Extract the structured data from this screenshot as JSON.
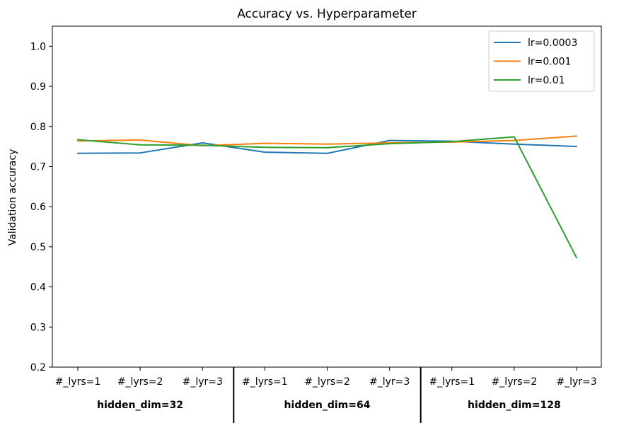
{
  "chart_data": {
    "type": "line",
    "title": "Accuracy vs. Hyperparameter",
    "xlabel": "",
    "ylabel": "Validation accuracy",
    "ylim": [
      0.2,
      1.05
    ],
    "yticks": [
      0.2,
      0.3,
      0.4,
      0.5,
      0.6,
      0.7,
      0.8,
      0.9,
      1.0
    ],
    "ytick_labels": [
      "0.2",
      "0.3",
      "0.4",
      "0.5",
      "0.6",
      "0.7",
      "0.8",
      "0.9",
      "1.0"
    ],
    "categories": [
      "#_lyrs=1",
      "#_lyrs=2",
      "#_lyr=3",
      "#_lyrs=1",
      "#_lyrs=2",
      "#_lyr=3",
      "#_lyrs=1",
      "#_lyrs=2",
      "#_lyr=3"
    ],
    "groups": [
      {
        "label": "hidden_dim=32",
        "span": [
          0,
          2
        ]
      },
      {
        "label": "hidden_dim=64",
        "span": [
          3,
          5
        ]
      },
      {
        "label": "hidden_dim=128",
        "span": [
          6,
          8
        ]
      }
    ],
    "series": [
      {
        "name": "lr=0.0003",
        "color": "#1f77b4",
        "values": [
          0.733,
          0.734,
          0.759,
          0.736,
          0.733,
          0.765,
          0.763,
          0.756,
          0.75
        ]
      },
      {
        "name": "lr=0.001",
        "color": "#ff7f0e",
        "values": [
          0.764,
          0.766,
          0.752,
          0.758,
          0.756,
          0.759,
          0.761,
          0.765,
          0.776
        ]
      },
      {
        "name": "lr=0.01",
        "color": "#2ca02c",
        "values": [
          0.767,
          0.754,
          0.753,
          0.748,
          0.747,
          0.757,
          0.762,
          0.774,
          0.473
        ]
      }
    ],
    "grid": false,
    "legend": "top-right"
  }
}
